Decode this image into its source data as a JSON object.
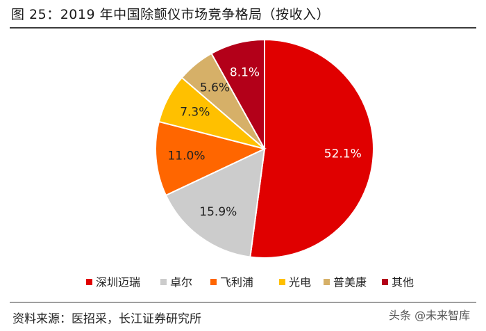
{
  "header": {
    "title": "图  25：2019 年中国除颤仪市场竞争格局（按收入）"
  },
  "footer": {
    "source": "资料来源：医招采，长江证券研究所",
    "watermark": "头条 @未来智库"
  },
  "chart_data": {
    "type": "pie",
    "title": "图  25：2019 年中国除颤仪市场竞争格局（按收入）",
    "categories": [
      "深圳迈瑞",
      "卓尔",
      "飞利浦",
      "光电",
      "普美康",
      "其他"
    ],
    "values": [
      52.1,
      15.9,
      11.0,
      7.3,
      5.6,
      8.1
    ],
    "labels": [
      "52.1%",
      "15.9%",
      "11.0%",
      "7.3%",
      "5.6%",
      "8.1%"
    ],
    "unit": "%",
    "start": "12 o'clock, clockwise",
    "legend_position": "bottom",
    "colors": [
      "#e00000",
      "#cccccc",
      "#ff6600",
      "#ffc000",
      "#d6b068",
      "#b30019"
    ],
    "label_colors": [
      "#ffffff",
      "#222222",
      "#222222",
      "#222222",
      "#222222",
      "#ffffff"
    ]
  }
}
